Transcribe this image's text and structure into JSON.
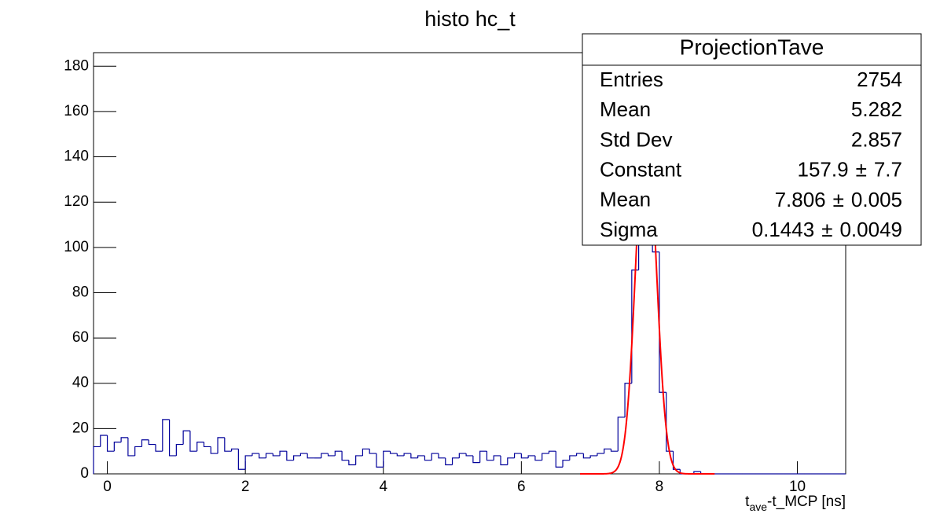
{
  "chart_data": {
    "type": "histogram",
    "title": "histo hc_t",
    "x_label": {
      "base": "t",
      "sub": "ave",
      "rest": "-t_MCP [ns]"
    },
    "xlim": [
      -0.2,
      10.7
    ],
    "ylim": [
      0,
      186
    ],
    "xticks": [
      0,
      2,
      4,
      6,
      8,
      10
    ],
    "yticks": [
      0,
      20,
      40,
      60,
      80,
      100,
      120,
      140,
      160,
      180
    ],
    "color": "#00009a",
    "fit_color": "#ff0000",
    "fit_range": [
      6.85,
      8.8
    ],
    "bins": [
      -0.2,
      -0.1,
      0,
      0.1,
      0.2,
      0.3,
      0.4,
      0.5,
      0.6,
      0.7,
      0.8,
      0.9,
      1,
      1.1,
      1.2,
      1.3,
      1.4,
      1.5,
      1.6,
      1.7,
      1.8,
      1.9,
      2,
      2.1,
      2.2,
      2.3,
      2.4,
      2.5,
      2.6,
      2.7,
      2.8,
      2.9,
      3,
      3.1,
      3.2,
      3.3,
      3.4,
      3.5,
      3.6,
      3.7,
      3.8,
      3.9,
      4,
      4.1,
      4.2,
      4.3,
      4.4,
      4.5,
      4.6,
      4.7,
      4.8,
      4.9,
      5,
      5.1,
      5.2,
      5.3,
      5.4,
      5.5,
      5.6,
      5.7,
      5.8,
      5.9,
      6,
      6.1,
      6.2,
      6.3,
      6.4,
      6.5,
      6.6,
      6.7,
      6.8,
      6.9,
      7,
      7.1,
      7.2,
      7.3,
      7.4,
      7.5,
      7.6,
      7.7,
      7.8,
      7.9,
      8,
      8.1,
      8.2,
      8.3,
      8.4,
      8.5,
      8.6,
      8.7,
      8.8,
      8.9,
      9,
      9.1,
      9.2,
      9.3,
      9.4,
      9.5,
      9.6,
      9.7,
      9.8,
      9.9,
      10,
      10.1,
      10.2,
      10.3,
      10.4,
      10.5,
      10.6,
      10.7
    ],
    "values": [
      12,
      17,
      10,
      14,
      16,
      8,
      12,
      15,
      13,
      10,
      24,
      8,
      13,
      19,
      10,
      14,
      12,
      9,
      16,
      10,
      11,
      2,
      8,
      9,
      7,
      9,
      8,
      10,
      6,
      8,
      9,
      7,
      7,
      9,
      8,
      10,
      6,
      4,
      8,
      11,
      9,
      3,
      10,
      9,
      8,
      9,
      7,
      8,
      6,
      9,
      7,
      4,
      7,
      9,
      8,
      5,
      10,
      6,
      8,
      4,
      7,
      9,
      7,
      8,
      6,
      9,
      10,
      3,
      6,
      8,
      9,
      7,
      8,
      9,
      11,
      10,
      25,
      40,
      90,
      148,
      150,
      98,
      36,
      10,
      2,
      0,
      0,
      1,
      0,
      0,
      0,
      0,
      0,
      0,
      0,
      0,
      0,
      0,
      0,
      0,
      0,
      0,
      0,
      0,
      0,
      0,
      0,
      0,
      0
    ],
    "stats": {
      "title": "ProjectionTave",
      "rows": [
        {
          "label": "Entries",
          "value": 2754
        },
        {
          "label": "Mean",
          "value": 5.282
        },
        {
          "label": "Std Dev",
          "value": 2.857
        },
        {
          "label": "Constant",
          "value": 157.9,
          "separator": "±",
          "error": 7.7
        },
        {
          "label": "Mean",
          "value": 7.806,
          "separator": "±",
          "error": 0.005
        },
        {
          "label": "Sigma",
          "value": 0.1443,
          "separator": "±",
          "error": 0.0049
        }
      ]
    }
  }
}
